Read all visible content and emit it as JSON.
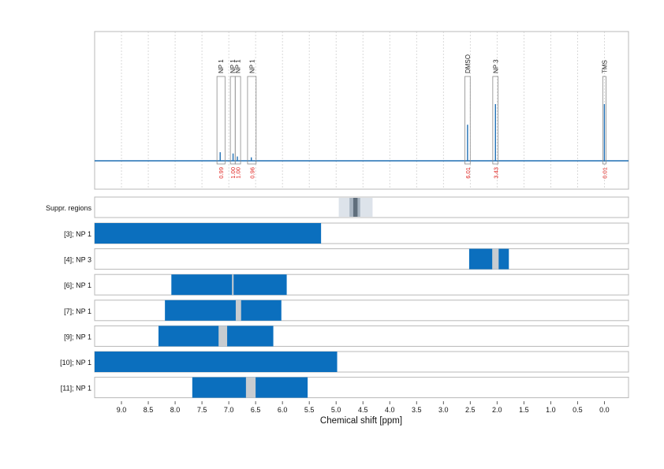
{
  "chart_data": {
    "type": "nmr-spectrum",
    "xlabel": "Chemical shift [ppm]",
    "xlim": [
      9.5,
      -0.45
    ],
    "x_ticks": [
      9.0,
      8.5,
      8.0,
      7.5,
      7.0,
      6.5,
      6.0,
      5.5,
      5.0,
      4.5,
      4.0,
      3.5,
      3.0,
      2.5,
      2.0,
      1.5,
      1.0,
      0.5,
      0.0
    ],
    "x_tick_labels": [
      "9.0",
      "8.5",
      "8.0",
      "7.5",
      "7.0",
      "6.5",
      "6.0",
      "5.5",
      "5.0",
      "4.5",
      "4.0",
      "3.5",
      "3.0",
      "2.5",
      "2.0",
      "1.5",
      "1.0",
      "0.5",
      "0.0"
    ],
    "grid": true,
    "peaks": [
      {
        "label": "NP 1",
        "ppm": 7.16,
        "range": [
          7.22,
          7.07
        ],
        "integral": "0.99",
        "intensity": 0.1
      },
      {
        "label": "NP 1",
        "ppm": 6.92,
        "range": [
          6.97,
          6.88
        ],
        "integral": "1.00",
        "intensity": 0.085
      },
      {
        "label": "NP 1",
        "ppm": 6.84,
        "range": [
          6.88,
          6.78
        ],
        "integral": "1.00",
        "intensity": 0.05
      },
      {
        "label": "NP 1",
        "ppm": 6.58,
        "range": [
          6.65,
          6.49
        ],
        "integral": "0.96",
        "intensity": 0.04
      },
      {
        "label": "DMSO",
        "ppm": 2.55,
        "range": [
          2.6,
          2.5
        ],
        "integral": "6.01",
        "intensity": 0.42
      },
      {
        "label": "NP 3",
        "ppm": 2.03,
        "range": [
          2.08,
          1.98
        ],
        "integral": "3.43",
        "intensity": 0.66
      },
      {
        "label": "TMS",
        "ppm": 0.0,
        "range": [
          0.03,
          -0.03
        ],
        "integral": "0.01",
        "intensity": 0.66
      }
    ],
    "suppression_region": {
      "label": "Suppr. regions",
      "outer": [
        4.95,
        4.32
      ],
      "inner": [
        4.75,
        4.55
      ],
      "core": [
        4.68,
        4.6
      ]
    },
    "tracks": [
      {
        "label": "[3]; NP 1",
        "bars": [
          [
            9.5,
            5.28
          ]
        ],
        "gaps": []
      },
      {
        "label": "[4]; NP 3",
        "bars": [
          [
            2.52,
            1.78
          ]
        ],
        "gaps": [
          [
            2.09,
            1.97
          ]
        ]
      },
      {
        "label": "[6]; NP 1",
        "bars": [
          [
            8.07,
            5.92
          ]
        ],
        "gaps": [
          [
            6.94,
            6.91
          ]
        ]
      },
      {
        "label": "[7]; NP 1",
        "bars": [
          [
            8.19,
            6.02
          ]
        ],
        "gaps": [
          [
            6.87,
            6.77
          ]
        ]
      },
      {
        "label": "[9]; NP 1",
        "bars": [
          [
            8.31,
            6.17
          ]
        ],
        "gaps": [
          [
            7.19,
            7.03
          ]
        ]
      },
      {
        "label": "[10]; NP 1",
        "bars": [
          [
            9.5,
            4.98
          ]
        ],
        "gaps": []
      },
      {
        "label": "[11]; NP 1",
        "bars": [
          [
            7.68,
            5.53
          ]
        ],
        "gaps": [
          [
            6.68,
            6.5
          ]
        ]
      }
    ]
  },
  "colors": {
    "spectrum": "#1f6fb4",
    "bar": "#0b6fbe",
    "gap": "#c8ccd0",
    "integral_text": "#e0201c",
    "region_outer": "#dde3ea",
    "region_inner": "#a9b6c3",
    "region_core": "#5f6e7c",
    "frame": "#b8b8b8",
    "grid": "#c9c9c9"
  }
}
